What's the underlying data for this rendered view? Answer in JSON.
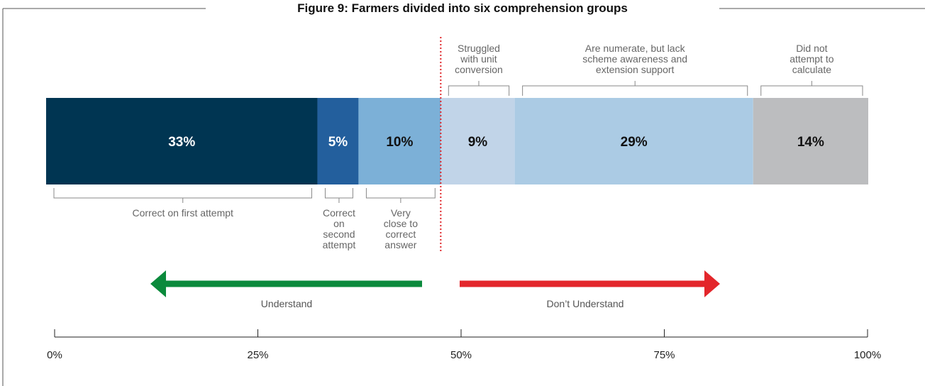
{
  "title": "Figure 9: Farmers divided into six comprehension groups",
  "chart_data": {
    "type": "bar",
    "orientation": "horizontal-stacked",
    "xlim": [
      0,
      100
    ],
    "segments": [
      {
        "value": 33,
        "label": "33%",
        "color": "#003552",
        "text_color": "#ffffff",
        "annotation": [
          "Correct on first attempt"
        ],
        "annotation_side": "below"
      },
      {
        "value": 5,
        "label": "5%",
        "color": "#235f9d",
        "text_color": "#ffffff",
        "annotation": [
          "Correct",
          "on",
          "second",
          "attempt"
        ],
        "annotation_side": "below"
      },
      {
        "value": 10,
        "label": "10%",
        "color": "#7cb0d7",
        "text_color": "#111111",
        "annotation": [
          "Very",
          "close to",
          "correct",
          "answer"
        ],
        "annotation_side": "below"
      },
      {
        "value": 9,
        "label": "9%",
        "color": "#c1d4e8",
        "text_color": "#111111",
        "annotation": [
          "Struggled",
          "with unit",
          "conversion"
        ],
        "annotation_side": "above"
      },
      {
        "value": 29,
        "label": "29%",
        "color": "#abcbe4",
        "text_color": "#111111",
        "annotation": [
          "Are numerate, but lack",
          "scheme awareness and",
          "extension support"
        ],
        "annotation_side": "above"
      },
      {
        "value": 14,
        "label": "14%",
        "color": "#bcbdbf",
        "text_color": "#111111",
        "annotation": [
          "Did not",
          "attempt to",
          "calculate"
        ],
        "annotation_side": "above"
      }
    ],
    "divider_color": "#e0262a",
    "arrows": [
      {
        "label": "Understand",
        "direction": "left",
        "color": "#0b8a3c"
      },
      {
        "label": "Don’t Understand",
        "direction": "right",
        "color": "#e3262b"
      }
    ],
    "axis_ticks": [
      {
        "value": 0,
        "label": "0%"
      },
      {
        "value": 25,
        "label": "25%"
      },
      {
        "value": 50,
        "label": "50%"
      },
      {
        "value": 75,
        "label": "75%"
      },
      {
        "value": 100,
        "label": "100%"
      }
    ]
  }
}
